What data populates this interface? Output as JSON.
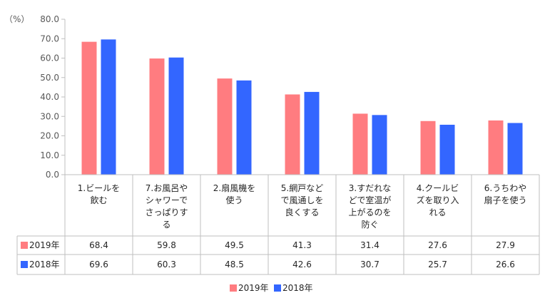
{
  "chart_data": {
    "type": "bar",
    "unit_label": "（%）",
    "ylim": [
      0,
      80
    ],
    "yticks": [
      "0.0",
      "10.0",
      "20.0",
      "30.0",
      "40.0",
      "50.0",
      "60.0",
      "70.0",
      "80.0"
    ],
    "categories": [
      [
        "1.ビールを",
        "飲む"
      ],
      [
        "7.お風呂や",
        "シャワーで",
        "さっぱりす",
        "る"
      ],
      [
        "2.扇風機を",
        "使う"
      ],
      [
        "5.網戸など",
        "で風通しを",
        "良くする"
      ],
      [
        "3.すだれな",
        "どで室温が",
        "上がるのを",
        "防ぐ"
      ],
      [
        "4.クールビ",
        "ズを取り入",
        "れる"
      ],
      [
        "6.うちわや",
        "扇子を使う"
      ]
    ],
    "series": [
      {
        "name": "2019年",
        "color": "#ff7c80",
        "values": [
          68.4,
          59.8,
          49.5,
          41.3,
          31.4,
          27.6,
          27.9
        ],
        "labels": [
          "68.4",
          "59.8",
          "49.5",
          "41.3",
          "31.4",
          "27.6",
          "27.9"
        ]
      },
      {
        "name": "2018年",
        "color": "#3366ff",
        "values": [
          69.6,
          60.3,
          48.5,
          42.6,
          30.7,
          25.7,
          26.6
        ],
        "labels": [
          "69.6",
          "60.3",
          "48.5",
          "42.6",
          "30.7",
          "25.7",
          "26.6"
        ]
      }
    ],
    "legend_position": "bottom",
    "grid": false
  }
}
